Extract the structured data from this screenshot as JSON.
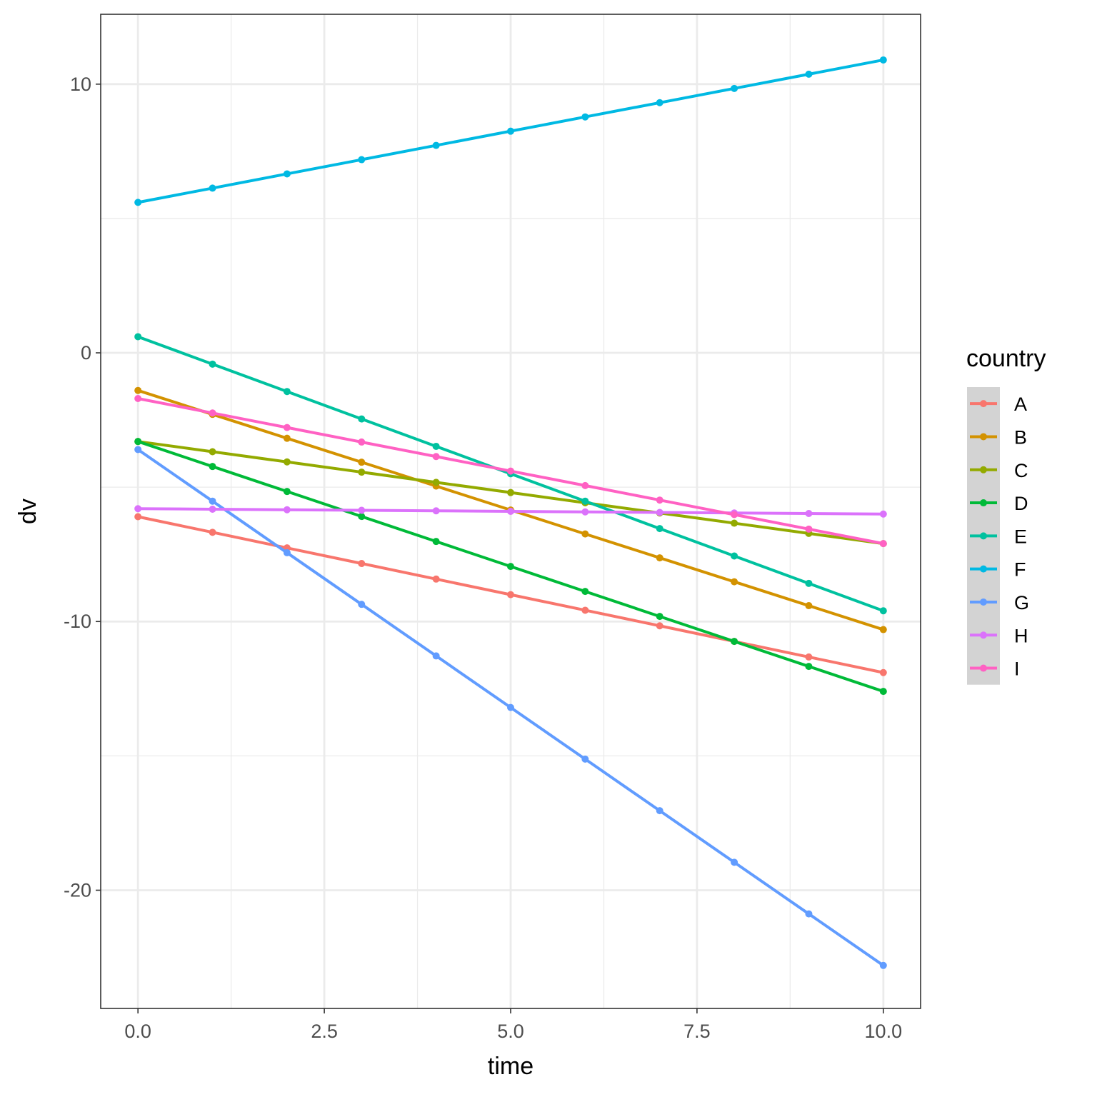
{
  "chart_data": {
    "type": "line",
    "xlabel": "time",
    "ylabel": "dv",
    "xlim": [
      -0.5,
      10.5
    ],
    "ylim": [
      -24.4,
      12.6
    ],
    "x_ticks": [
      0,
      2.5,
      5,
      7.5,
      10
    ],
    "x_tick_labels": [
      "0.0",
      "2.5",
      "5.0",
      "7.5",
      "10.0"
    ],
    "y_ticks": [
      -20,
      -10,
      0,
      10
    ],
    "y_tick_labels": [
      "-20",
      "-10",
      "0",
      "10"
    ],
    "grid": true,
    "legend": {
      "title": "country",
      "position": "right"
    },
    "x": [
      0,
      1,
      2,
      3,
      4,
      5,
      6,
      7,
      8,
      9,
      10
    ],
    "series": [
      {
        "name": "A",
        "color": "#F8766D",
        "values": [
          -6.1,
          -6.68,
          -7.26,
          -7.84,
          -8.42,
          -9.0,
          -9.58,
          -10.16,
          -10.74,
          -11.32,
          -11.9
        ]
      },
      {
        "name": "B",
        "color": "#D39200",
        "values": [
          -1.4,
          -2.29,
          -3.18,
          -4.07,
          -4.96,
          -5.85,
          -6.74,
          -7.63,
          -8.52,
          -9.41,
          -10.3
        ]
      },
      {
        "name": "C",
        "color": "#93AA00",
        "values": [
          -3.3,
          -3.68,
          -4.06,
          -4.44,
          -4.82,
          -5.2,
          -5.58,
          -5.96,
          -6.34,
          -6.72,
          -7.1
        ]
      },
      {
        "name": "D",
        "color": "#00BA38",
        "values": [
          -3.3,
          -4.23,
          -5.16,
          -6.09,
          -7.02,
          -7.95,
          -8.88,
          -9.81,
          -10.74,
          -11.67,
          -12.6
        ]
      },
      {
        "name": "E",
        "color": "#00C19F",
        "values": [
          0.6,
          -0.42,
          -1.44,
          -2.46,
          -3.48,
          -4.5,
          -5.52,
          -6.54,
          -7.56,
          -8.58,
          -9.6
        ]
      },
      {
        "name": "F",
        "color": "#00B9E3",
        "values": [
          5.6,
          6.13,
          6.66,
          7.19,
          7.72,
          8.25,
          8.78,
          9.31,
          9.84,
          10.37,
          10.9
        ]
      },
      {
        "name": "G",
        "color": "#619CFF",
        "values": [
          -3.6,
          -5.52,
          -7.44,
          -9.36,
          -11.28,
          -13.2,
          -15.12,
          -17.04,
          -18.96,
          -20.88,
          -22.8
        ]
      },
      {
        "name": "H",
        "color": "#DB72FB",
        "values": [
          -5.8,
          -5.82,
          -5.84,
          -5.86,
          -5.88,
          -5.9,
          -5.92,
          -5.94,
          -5.96,
          -5.98,
          -6.0
        ]
      },
      {
        "name": "I",
        "color": "#FF61C3",
        "values": [
          -1.7,
          -2.24,
          -2.78,
          -3.32,
          -3.86,
          -4.4,
          -4.94,
          -5.48,
          -6.02,
          -6.56,
          -7.1
        ]
      }
    ]
  }
}
